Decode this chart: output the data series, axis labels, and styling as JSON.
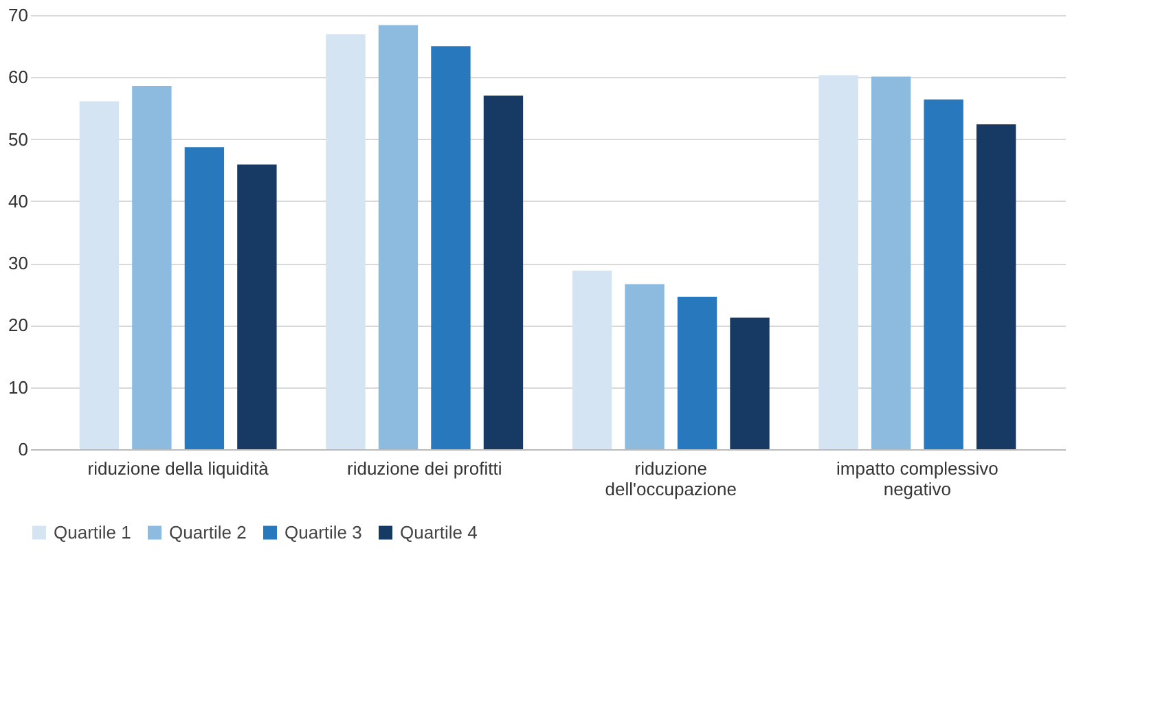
{
  "chart_data": {
    "type": "bar",
    "categories": [
      "riduzione della liquidità",
      "riduzione dei profitti",
      "riduzione dell'occupazione",
      "impatto complessivo negativo"
    ],
    "series": [
      {
        "name": "Quartile 1",
        "color": "#d4e4f3",
        "values": [
          56.1,
          66.9,
          28.8,
          60.3
        ]
      },
      {
        "name": "Quartile 2",
        "color": "#8dbbe0",
        "values": [
          58.6,
          68.4,
          26.6,
          60.1
        ]
      },
      {
        "name": "Quartile 3",
        "color": "#2878bd",
        "values": [
          48.7,
          65.0,
          24.6,
          56.4
        ]
      },
      {
        "name": "Quartile 4",
        "color": "#163a64",
        "values": [
          45.9,
          57.0,
          21.2,
          52.4
        ]
      }
    ],
    "ylim": [
      0,
      70
    ],
    "yticks": [
      0,
      10,
      20,
      30,
      40,
      50,
      60,
      70
    ],
    "grid": "y",
    "legend": "bottom"
  }
}
